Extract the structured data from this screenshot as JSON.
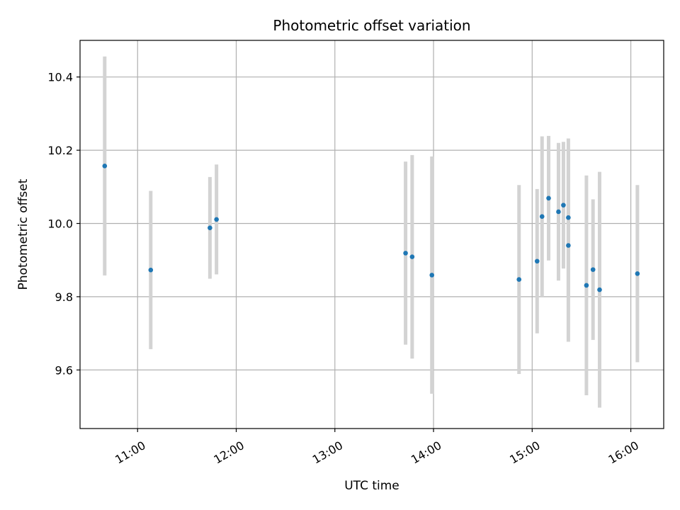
{
  "chart_data": {
    "type": "scatter",
    "title": "Photometric offset variation",
    "xlabel": "UTC time",
    "ylabel": "Photometric offset",
    "x_ticks": [
      "11:00",
      "12:00",
      "13:00",
      "14:00",
      "15:00",
      "16:00"
    ],
    "y_ticks": [
      "9.6",
      "9.8",
      "10.0",
      "10.2",
      "10.4"
    ],
    "xlim": [
      "10:25",
      "16:20"
    ],
    "ylim": [
      9.44,
      10.5
    ],
    "grid": true,
    "colors": {
      "point": "#1f77b4",
      "errorbar": "#d3d3d3",
      "grid": "#b0b0b0"
    },
    "series": [
      {
        "x": [
          "10:40",
          "11:08",
          "11:44",
          "11:48",
          "13:43",
          "13:47",
          "13:59",
          "14:52",
          "15:03",
          "15:06",
          "15:10",
          "15:16",
          "15:19",
          "15:22",
          "15:22",
          "15:33",
          "15:37",
          "15:41",
          "16:04"
        ],
        "y": [
          10.157,
          9.873,
          9.988,
          10.011,
          9.919,
          9.909,
          9.859,
          9.847,
          9.897,
          10.019,
          10.069,
          10.032,
          10.05,
          10.016,
          9.94,
          9.831,
          9.874,
          9.819,
          9.863
        ],
        "yerr": [
          0.299,
          0.216,
          0.139,
          0.15,
          0.25,
          0.278,
          0.324,
          0.258,
          0.197,
          0.219,
          0.17,
          0.188,
          0.173,
          0.216,
          0.263,
          0.3,
          0.192,
          0.322,
          0.242
        ]
      }
    ]
  }
}
